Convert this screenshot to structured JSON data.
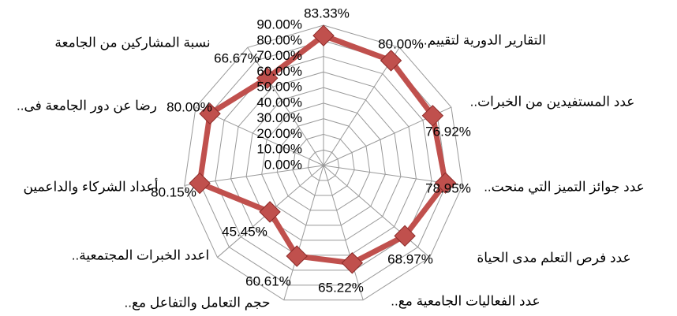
{
  "chart_data": {
    "type": "radar",
    "categories": [
      null,
      "..التقارير الدورية لتقييم",
      "..عدد المستفيدين من الخبرات",
      "..عدد جوائز التميز التي منحت",
      "عدد فرص التعلم مدى الحياة",
      "..عدد الفعاليات الجامعية مع",
      "..حجم التعامل والتفاعل مع",
      "..اعدد الخبرات المجتمعية",
      "أعداد الشركاء والداعمين",
      "..رضا عن دور الجامعة فى",
      "نسبة المشاركين من الجامعة"
    ],
    "values": [
      83.33,
      80.0,
      76.92,
      78.95,
      68.97,
      65.22,
      60.61,
      45.45,
      80.15,
      80.0,
      66.67
    ],
    "value_labels": [
      "83.33%",
      "80.00%",
      "76.92%",
      "78.95%",
      "68.97%",
      "65.22%",
      "60.61%",
      "45.45%",
      "80.15%",
      "80.00%",
      "66.67%"
    ],
    "color": "#c0504d",
    "ylim": [
      0,
      90
    ],
    "yticks": [
      {
        "value": 0,
        "label": "0.00%"
      },
      {
        "value": 10,
        "label": "10.00%"
      },
      {
        "value": 20,
        "label": "20.00%"
      },
      {
        "value": 30,
        "label": "30.00%"
      },
      {
        "value": 40,
        "label": "40.00%"
      },
      {
        "value": 50,
        "label": "50.00%"
      },
      {
        "value": 60,
        "label": "60.00%"
      },
      {
        "value": 70,
        "label": "70.00%"
      },
      {
        "value": 80,
        "label": "80.00%"
      },
      {
        "value": 90,
        "label": "90.00%"
      }
    ],
    "grid": true
  }
}
